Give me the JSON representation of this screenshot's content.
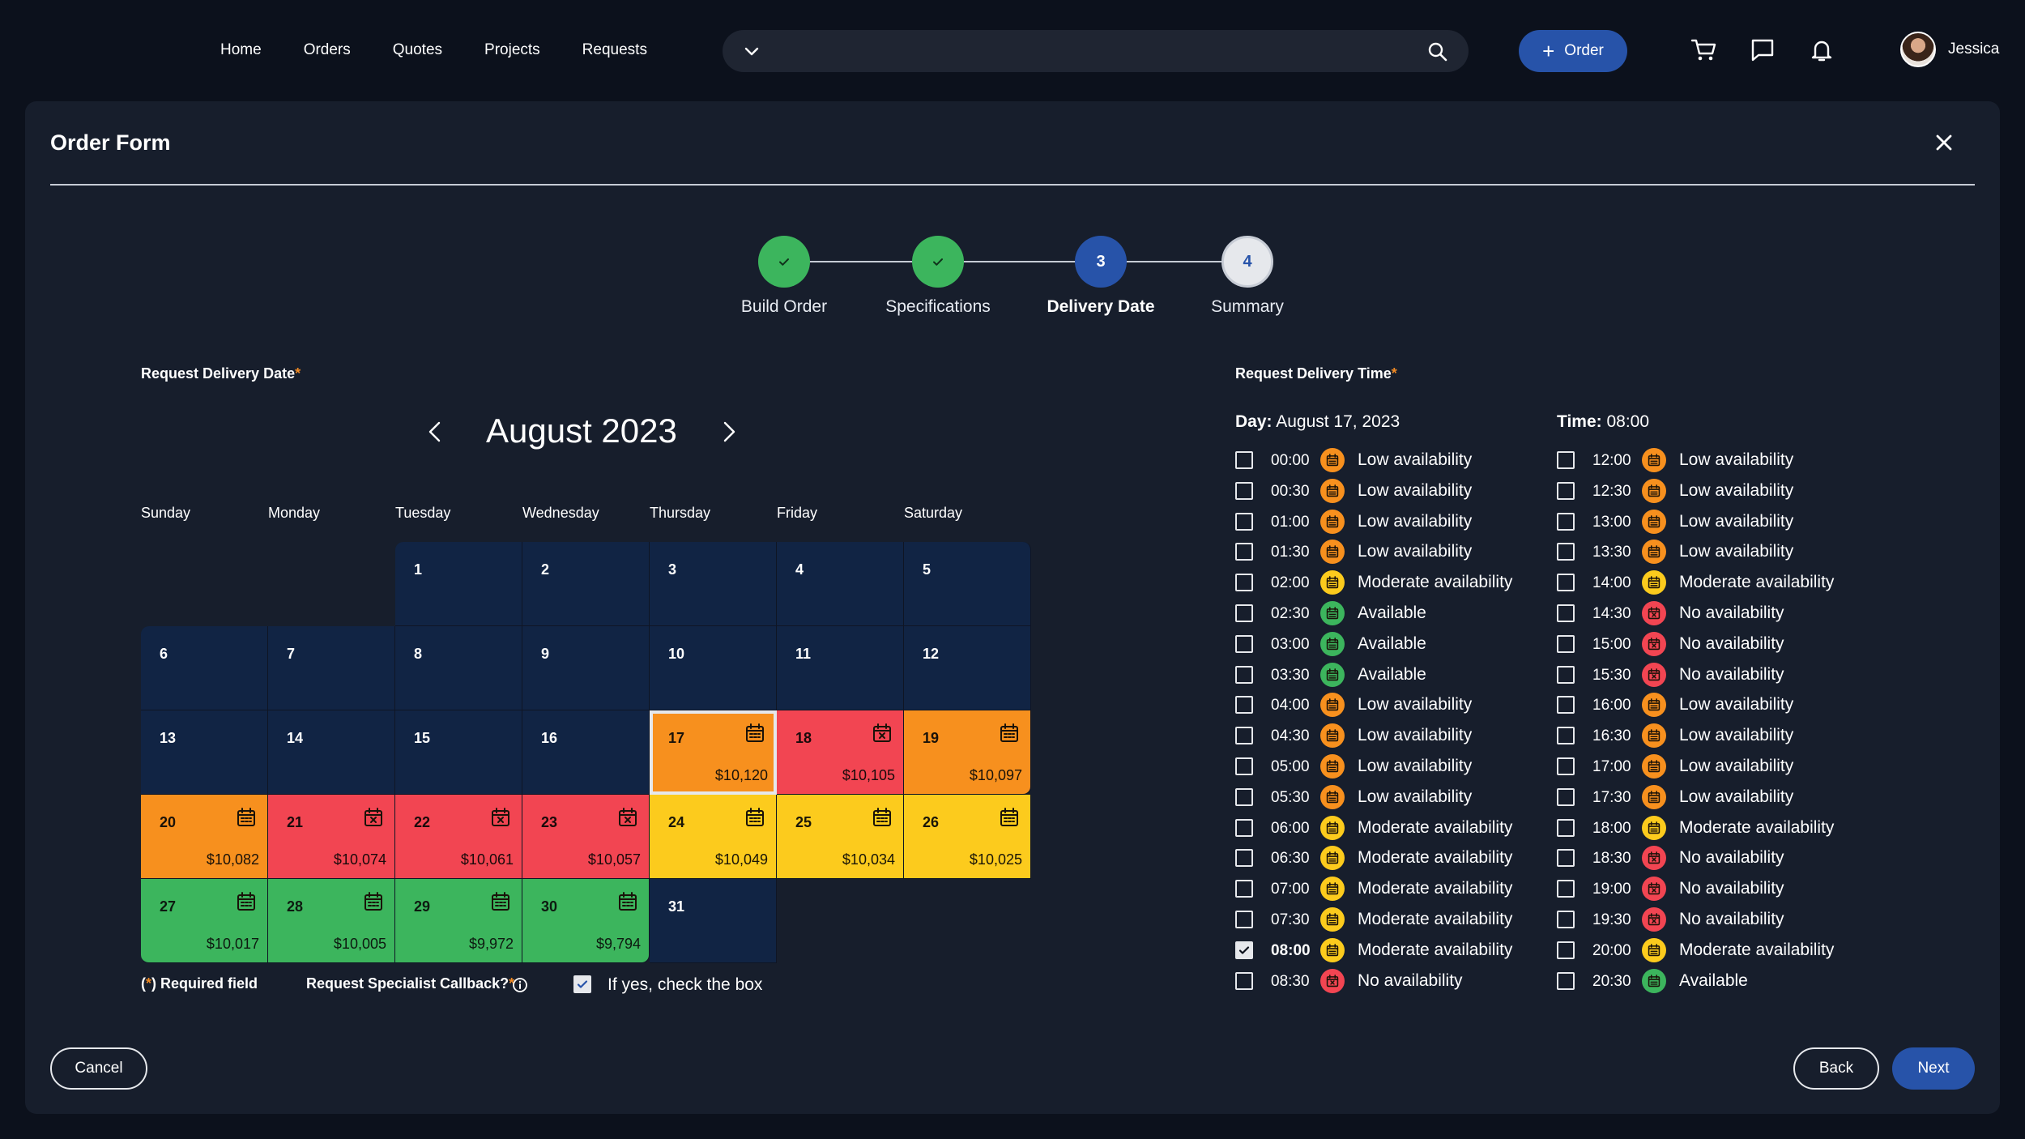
{
  "nav": {
    "items": [
      {
        "label": "Home"
      },
      {
        "label": "Orders"
      },
      {
        "label": "Quotes"
      },
      {
        "label": "Projects"
      },
      {
        "label": "Requests"
      }
    ]
  },
  "search": {
    "placeholder": "",
    "value": ""
  },
  "header": {
    "order_button": "Order",
    "user_name": "Jessica"
  },
  "icons": {
    "search": "search-icon",
    "cart": "cart-icon",
    "chat": "chat-icon",
    "bell": "bell-icon",
    "close": "close-icon",
    "calendar": "calendar-icon",
    "calendar_x": "calendar-x-icon",
    "info": "info-icon"
  },
  "colors": {
    "accent": "#2753a9",
    "low": "#f7901e",
    "none": "#f24552",
    "moderate": "#fccb1d",
    "available": "#3cb55d",
    "empty_day": "#112444"
  },
  "form": {
    "title": "Order Form",
    "steps": [
      {
        "label": "Build Order",
        "state": "done",
        "number": "1"
      },
      {
        "label": "Specifications",
        "state": "done",
        "number": "2"
      },
      {
        "label": "Delivery Date",
        "state": "current",
        "number": "3"
      },
      {
        "label": "Summary",
        "state": "todo",
        "number": "4"
      }
    ],
    "date_label": "Request Delivery Date",
    "time_label": "Request Delivery Time",
    "required_star": "*",
    "month": "August 2023",
    "weekdays": [
      "Sunday",
      "Monday",
      "Tuesday",
      "Wednesday",
      "Thursday",
      "Friday",
      "Saturday"
    ],
    "days": [
      {
        "day": "1",
        "status": "empty",
        "price": ""
      },
      {
        "day": "2",
        "status": "empty",
        "price": ""
      },
      {
        "day": "3",
        "status": "empty",
        "price": ""
      },
      {
        "day": "4",
        "status": "empty",
        "price": ""
      },
      {
        "day": "5",
        "status": "empty",
        "price": ""
      },
      {
        "day": "6",
        "status": "empty",
        "price": ""
      },
      {
        "day": "7",
        "status": "empty",
        "price": ""
      },
      {
        "day": "8",
        "status": "empty",
        "price": ""
      },
      {
        "day": "9",
        "status": "empty",
        "price": ""
      },
      {
        "day": "10",
        "status": "empty",
        "price": ""
      },
      {
        "day": "11",
        "status": "empty",
        "price": ""
      },
      {
        "day": "12",
        "status": "empty",
        "price": ""
      },
      {
        "day": "13",
        "status": "empty",
        "price": ""
      },
      {
        "day": "14",
        "status": "empty",
        "price": ""
      },
      {
        "day": "15",
        "status": "empty",
        "price": ""
      },
      {
        "day": "16",
        "status": "empty",
        "price": ""
      },
      {
        "day": "17",
        "status": "low",
        "price": "$10,120",
        "selected": true
      },
      {
        "day": "18",
        "status": "none",
        "price": "$10,105"
      },
      {
        "day": "19",
        "status": "low",
        "price": "$10,097"
      },
      {
        "day": "20",
        "status": "low",
        "price": "$10,082"
      },
      {
        "day": "21",
        "status": "none",
        "price": "$10,074"
      },
      {
        "day": "22",
        "status": "none",
        "price": "$10,061"
      },
      {
        "day": "23",
        "status": "none",
        "price": "$10,057"
      },
      {
        "day": "24",
        "status": "moderate",
        "price": "$10,049"
      },
      {
        "day": "25",
        "status": "moderate",
        "price": "$10,034"
      },
      {
        "day": "26",
        "status": "moderate",
        "price": "$10,025"
      },
      {
        "day": "27",
        "status": "available",
        "price": "$10,017"
      },
      {
        "day": "28",
        "status": "available",
        "price": "$10,005"
      },
      {
        "day": "29",
        "status": "available",
        "price": "$9,972"
      },
      {
        "day": "30",
        "status": "available",
        "price": "$9,794"
      },
      {
        "day": "31",
        "status": "empty",
        "price": ""
      }
    ],
    "required_note_open": "(",
    "required_note_star": "*",
    "required_note_rest": ") Required field",
    "callback_label": "Request Specialist Callback?",
    "callback_star": "*",
    "callback_checkbox_label": "If yes, check the box",
    "callback_checked": true,
    "day_heading_label": "Day:",
    "day_heading_value": "August 17, 2023",
    "time_heading_label": "Time:",
    "time_heading_value": "08:00",
    "slots_left": [
      {
        "time": "00:00",
        "status": "low",
        "text": "Low availability"
      },
      {
        "time": "00:30",
        "status": "low",
        "text": "Low availability"
      },
      {
        "time": "01:00",
        "status": "low",
        "text": "Low availability"
      },
      {
        "time": "01:30",
        "status": "low",
        "text": "Low availability"
      },
      {
        "time": "02:00",
        "status": "moderate",
        "text": "Moderate availability"
      },
      {
        "time": "02:30",
        "status": "available",
        "text": "Available"
      },
      {
        "time": "03:00",
        "status": "available",
        "text": "Available"
      },
      {
        "time": "03:30",
        "status": "available",
        "text": "Available"
      },
      {
        "time": "04:00",
        "status": "low",
        "text": "Low availability"
      },
      {
        "time": "04:30",
        "status": "low",
        "text": "Low availability"
      },
      {
        "time": "05:00",
        "status": "low",
        "text": "Low availability"
      },
      {
        "time": "05:30",
        "status": "low",
        "text": "Low availability"
      },
      {
        "time": "06:00",
        "status": "moderate",
        "text": "Moderate availability"
      },
      {
        "time": "06:30",
        "status": "moderate",
        "text": "Moderate availability"
      },
      {
        "time": "07:00",
        "status": "moderate",
        "text": "Moderate availability"
      },
      {
        "time": "07:30",
        "status": "moderate",
        "text": "Moderate availability"
      },
      {
        "time": "08:00",
        "status": "moderate",
        "text": "Moderate availability",
        "checked": true
      },
      {
        "time": "08:30",
        "status": "none",
        "text": "No availability"
      }
    ],
    "slots_right": [
      {
        "time": "12:00",
        "status": "low",
        "text": "Low availability"
      },
      {
        "time": "12:30",
        "status": "low",
        "text": "Low availability"
      },
      {
        "time": "13:00",
        "status": "low",
        "text": "Low availability"
      },
      {
        "time": "13:30",
        "status": "low",
        "text": "Low availability"
      },
      {
        "time": "14:00",
        "status": "moderate",
        "text": "Moderate availability"
      },
      {
        "time": "14:30",
        "status": "none",
        "text": "No availability"
      },
      {
        "time": "15:00",
        "status": "none",
        "text": "No availability"
      },
      {
        "time": "15:30",
        "status": "none",
        "text": "No availability"
      },
      {
        "time": "16:00",
        "status": "low",
        "text": "Low availability"
      },
      {
        "time": "16:30",
        "status": "low",
        "text": "Low availability"
      },
      {
        "time": "17:00",
        "status": "low",
        "text": "Low availability"
      },
      {
        "time": "17:30",
        "status": "low",
        "text": "Low availability"
      },
      {
        "time": "18:00",
        "status": "moderate",
        "text": "Moderate availability"
      },
      {
        "time": "18:30",
        "status": "none",
        "text": "No availability"
      },
      {
        "time": "19:00",
        "status": "none",
        "text": "No availability"
      },
      {
        "time": "19:30",
        "status": "none",
        "text": "No availability"
      },
      {
        "time": "20:00",
        "status": "moderate",
        "text": "Moderate availability"
      },
      {
        "time": "20:30",
        "status": "available",
        "text": "Available"
      }
    ],
    "cancel_button": "Cancel",
    "back_button": "Back",
    "next_button": "Next"
  }
}
